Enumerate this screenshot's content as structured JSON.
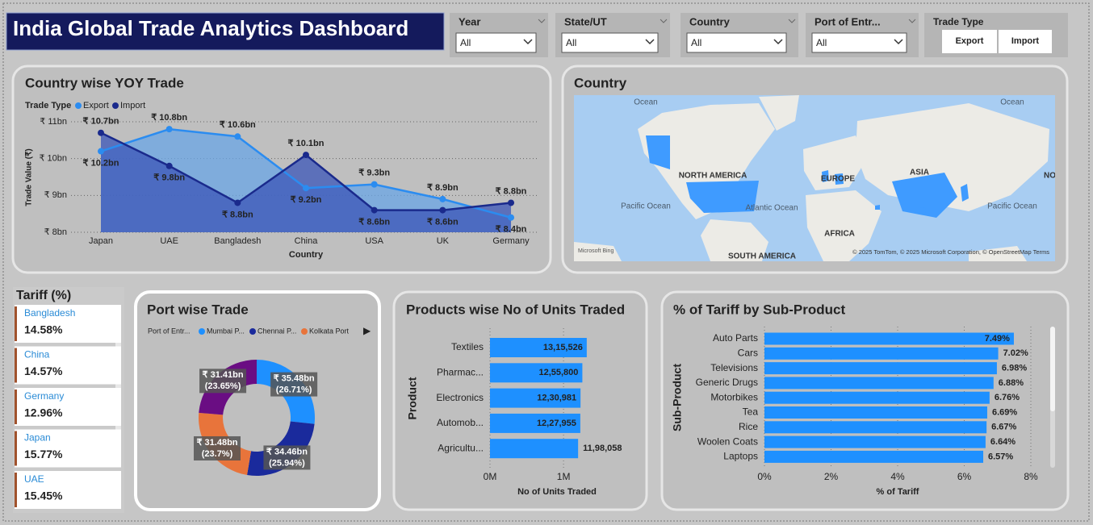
{
  "header": {
    "title": "India Global Trade Analytics Dashboard"
  },
  "filters": [
    {
      "label": "Year",
      "value": "All"
    },
    {
      "label": "State/UT",
      "value": "All"
    },
    {
      "label": "Country",
      "value": "All"
    },
    {
      "label": "Port of Entr...",
      "value": "All"
    }
  ],
  "trade_type": {
    "label": "Trade Type",
    "options": [
      "Export",
      "Import"
    ]
  },
  "tariff_cards": {
    "title": "Tariff (%)",
    "items": [
      {
        "name": "Bangladesh",
        "value": "14.58%"
      },
      {
        "name": "China",
        "value": "14.57%"
      },
      {
        "name": "Germany",
        "value": "12.96%"
      },
      {
        "name": "Japan",
        "value": "15.77%"
      },
      {
        "name": "UAE",
        "value": "15.45%"
      }
    ]
  },
  "chart_data": [
    {
      "type": "area",
      "title": "Country wise YOY Trade",
      "legend_title": "Trade Type",
      "x_label": "Country",
      "y_label": "Trade Value (₹)",
      "categories": [
        "Japan",
        "UAE",
        "Bangladesh",
        "China",
        "USA",
        "UK",
        "Germany"
      ],
      "series": [
        {
          "name": "Export",
          "color": "#2b8cf0",
          "values": [
            10.2,
            10.8,
            10.6,
            9.2,
            9.3,
            8.9,
            8.4
          ],
          "value_labels": [
            "₹ 10.2bn",
            "₹ 10.8bn",
            "₹ 10.6bn",
            "₹ 9.2bn",
            "₹ 9.3bn",
            "₹ 8.9bn",
            "₹ 8.4bn"
          ]
        },
        {
          "name": "Import",
          "color": "#1a2a8c",
          "values": [
            10.7,
            9.8,
            8.8,
            10.1,
            8.6,
            8.6,
            8.8
          ],
          "value_labels": [
            "₹ 10.7bn",
            "₹ 9.8bn",
            "₹ 8.8bn",
            "₹ 10.1bn",
            "₹ 8.6bn",
            "₹ 8.6bn",
            "₹ 8.8bn"
          ]
        }
      ],
      "ylim": [
        8,
        11
      ],
      "yticks": [
        {
          "value": 8,
          "label": "₹ 8bn"
        },
        {
          "value": 9,
          "label": "₹ 9bn"
        },
        {
          "value": 10,
          "label": "₹ 10bn"
        },
        {
          "value": 11,
          "label": "₹ 11bn"
        }
      ],
      "grid": true
    },
    {
      "type": "map",
      "title": "Country",
      "labels": [
        "Ocean",
        "Ocean",
        "NORTH AMERICA",
        "EUROPE",
        "ASIA",
        "NO",
        "Pacific Ocean",
        "Atlantic Ocean",
        "Pacific Ocean",
        "AFRICA",
        "SOUTH AMERICA"
      ],
      "attribution": "© 2025 TomTom, © 2025 Microsoft Corporation, © OpenStreetMap  Terms",
      "provider": "Microsoft Bing"
    },
    {
      "type": "donut",
      "title": "Port wise Trade",
      "legend_title": "Port of Entr...",
      "categories": [
        "Mumbai P...",
        "Chennai P...",
        "Kolkata Port",
        null
      ],
      "values": [
        35.48,
        34.46,
        31.48,
        31.41
      ],
      "value_labels": [
        "₹ 35.48bn",
        "₹ 34.46bn",
        "₹ 31.48bn",
        "₹ 31.41bn"
      ],
      "percent_labels": [
        "(26.71%)",
        "(25.94%)",
        "(23.7%)",
        "(23.65%)"
      ],
      "colors": [
        "#1e90ff",
        "#1a2a9c",
        "#e8743b",
        "#6a0d83"
      ]
    },
    {
      "type": "hbar",
      "title": "Products wise No of Units Traded",
      "x_label": "No of Units Traded",
      "y_label": "Product",
      "categories": [
        "Textiles",
        "Pharmac...",
        "Electronics",
        "Automob...",
        "Agricultu..."
      ],
      "values": [
        1315526,
        1255800,
        1230981,
        1227955,
        1198058
      ],
      "value_labels": [
        "13,15,526",
        "12,55,800",
        "12,30,981",
        "12,27,955",
        "11,98,058"
      ],
      "color": "#1e90ff",
      "xlim": [
        0,
        1350000
      ],
      "xticks": [
        {
          "value": 0,
          "label": "0M"
        },
        {
          "value": 1000000,
          "label": "1M"
        }
      ]
    },
    {
      "type": "hbar",
      "title": "% of Tariff by Sub-Product",
      "x_label": "% of Tariff",
      "y_label": "Sub-Product",
      "categories": [
        "Auto Parts",
        "Cars",
        "Televisions",
        "Generic Drugs",
        "Motorbikes",
        "Tea",
        "Rice",
        "Woolen Coats",
        "Laptops"
      ],
      "values": [
        7.49,
        7.02,
        6.98,
        6.88,
        6.76,
        6.69,
        6.67,
        6.64,
        6.57
      ],
      "value_labels": [
        "7.49%",
        "7.02%",
        "6.98%",
        "6.88%",
        "6.76%",
        "6.69%",
        "6.67%",
        "6.64%",
        "6.57%"
      ],
      "color": "#1e90ff",
      "xlim": [
        0,
        8
      ],
      "xticks": [
        {
          "value": 0,
          "label": "0%"
        },
        {
          "value": 2,
          "label": "2%"
        },
        {
          "value": 4,
          "label": "4%"
        },
        {
          "value": 6,
          "label": "6%"
        },
        {
          "value": 8,
          "label": "8%"
        }
      ]
    }
  ]
}
